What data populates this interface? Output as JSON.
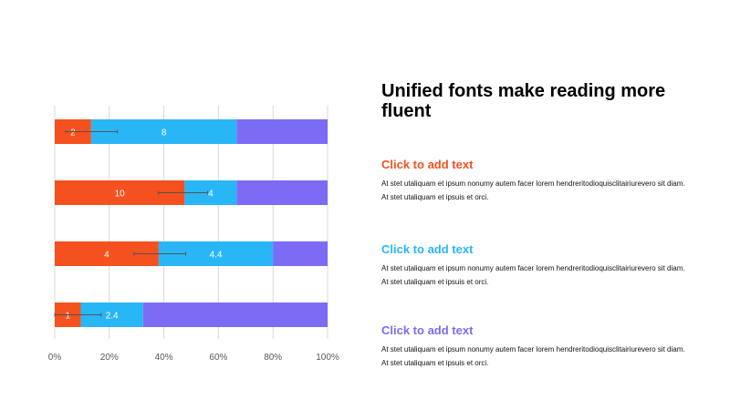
{
  "slide": {
    "title": "Unified fonts make reading more fluent",
    "blocks": [
      {
        "heading": "Click to add text",
        "body": "At stet utaliquam  et ipsum nonumy  autem facer lorem hendreritodioquisclitairiurevero  sit diam.  At stet utaliquam  et ipsuis  et orci.",
        "color": "#F4511E"
      },
      {
        "heading": "Click to add text",
        "body": "At stet utaliquam  et ipsum nonumy  autem facer lorem hendreritodioquisclitairiurevero  sit diam.  At stet utaliquam  et ipsuis  et orci.",
        "color": "#29B6F6"
      },
      {
        "heading": "Click to add text",
        "body": "At stet utaliquam  et ipsum nonumy  autem facer lorem hendreritodioquisclitairiurevero  sit diam.  At stet utaliquam  et ipsuis  et orci.",
        "color": "#7C6CF5"
      }
    ]
  },
  "chart_data": {
    "type": "bar",
    "orientation": "horizontal",
    "stacking": "percent",
    "grid": true,
    "xlim": [
      0,
      100
    ],
    "x_ticks": [
      "0%",
      "20%",
      "40%",
      "60%",
      "80%",
      "100%"
    ],
    "series": [
      {
        "color": "#F4511E",
        "values": [
          2,
          10,
          4,
          1
        ],
        "labels": [
          "2",
          "10",
          "4",
          "1"
        ]
      },
      {
        "color": "#29B6F6",
        "values": [
          8,
          4,
          4.4,
          2.4
        ],
        "labels": [
          "8",
          "4",
          "4.4",
          "2.4"
        ]
      },
      {
        "color": "#7C6CF5",
        "values": [
          5,
          7,
          2.1,
          7.1
        ],
        "labels": [
          "",
          "",
          "",
          ""
        ]
      }
    ],
    "error_bars": [
      {
        "from": 0.04,
        "to": 0.23
      },
      {
        "from": 0.38,
        "to": 0.56
      },
      {
        "from": 0.29,
        "to": 0.48
      },
      {
        "from": 0.0,
        "to": 0.17
      }
    ]
  }
}
